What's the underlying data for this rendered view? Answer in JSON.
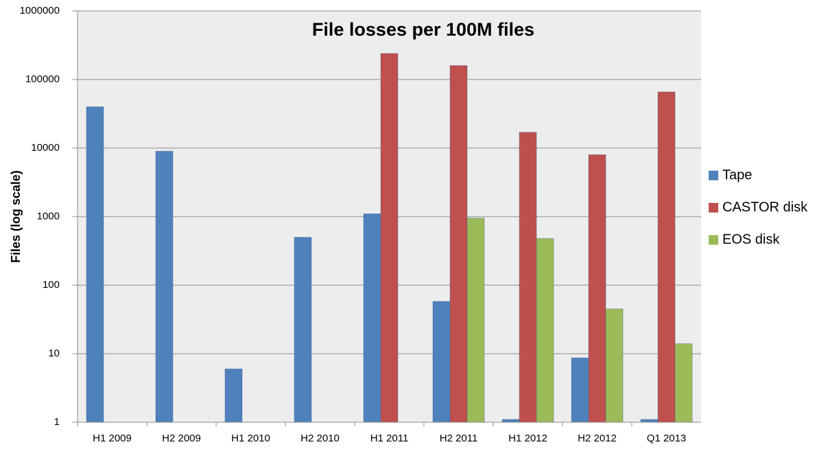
{
  "chart_data": {
    "type": "bar",
    "title": "File losses per 100M files",
    "y_label": "Files (log scale)",
    "categories": [
      "H1 2009",
      "H2 2009",
      "H1 2010",
      "H2 2010",
      "H1 2011",
      "H2 2011",
      "H1 2012",
      "H2 2012",
      "Q1 2013"
    ],
    "series": [
      {
        "name": "Tape",
        "color": "#4f81bd",
        "values": [
          40000,
          9000,
          6,
          500,
          1100,
          58,
          1.1,
          8.7,
          1.1
        ]
      },
      {
        "name": "CASTOR disk",
        "color": "#c0504d",
        "values": [
          null,
          null,
          null,
          null,
          240000,
          160000,
          17000,
          8000,
          66000
        ]
      },
      {
        "name": "EOS disk",
        "color": "#9bbb59",
        "values": [
          null,
          null,
          null,
          null,
          null,
          950,
          480,
          45,
          14
        ]
      }
    ],
    "ylim": [
      1,
      1000000
    ],
    "yticks": [
      1,
      10,
      100,
      1000,
      10000,
      100000,
      1000000
    ],
    "log_scale": true,
    "grid": true,
    "legend": "right"
  }
}
